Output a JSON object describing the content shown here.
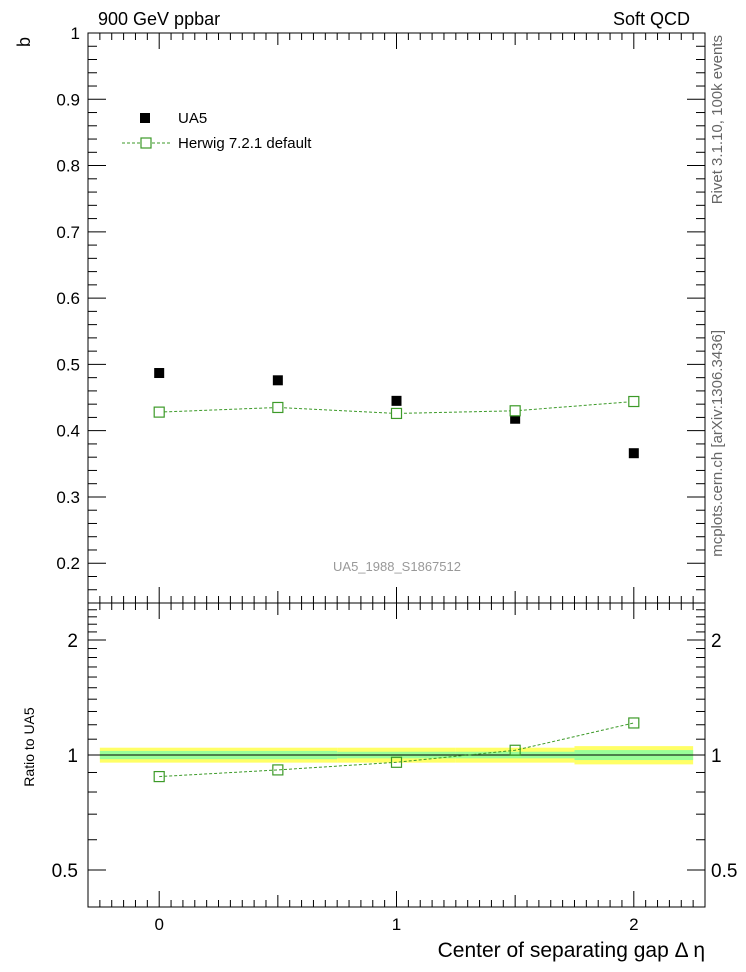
{
  "header": {
    "left": "900 GeV ppbar",
    "right": "Soft QCD"
  },
  "side": {
    "rivet": "Rivet 3.1.10,  100k events",
    "mcplots": "mcplots.cern.ch [arXiv:1306.3436]"
  },
  "analysis_id": "UA5_1988_S1867512",
  "colors": {
    "data": "#000000",
    "mc": "#3c9a28",
    "band_yellow": "#ffff66",
    "band_green": "#99ff99"
  },
  "chart_data": [
    {
      "type": "scatter",
      "panel": "main",
      "ylabel": "b",
      "xlim": [
        -0.3,
        2.3
      ],
      "ylim": [
        0.14,
        1.0
      ],
      "yticks": [
        0.2,
        0.3,
        0.4,
        0.5,
        0.6,
        0.7,
        0.8,
        0.9,
        1
      ],
      "ytick_labels": [
        "0.2",
        "0.3",
        "0.4",
        "0.5",
        "0.6",
        "0.7",
        "0.8",
        "0.9",
        "1"
      ],
      "legend": {
        "placement": "top-left",
        "entries": [
          "UA5",
          "Herwig 7.2.1 default"
        ]
      },
      "series": [
        {
          "name": "UA5",
          "style": "filled-square",
          "x": [
            0,
            0.5,
            1,
            1.5,
            2
          ],
          "values": [
            0.487,
            0.476,
            0.445,
            0.418,
            0.366
          ]
        },
        {
          "name": "Herwig 7.2.1 default",
          "style": "open-square-dashed-line",
          "x": [
            0,
            0.5,
            1,
            1.5,
            2
          ],
          "values": [
            0.428,
            0.435,
            0.426,
            0.43,
            0.444
          ]
        }
      ]
    },
    {
      "type": "line",
      "panel": "ratio",
      "ylabel": "Ratio to UA5",
      "xlabel": "Center of separating gap Δ η",
      "xlim": [
        -0.3,
        2.3
      ],
      "ylim": [
        0.4,
        2.5
      ],
      "log_y": true,
      "xticks": [
        0,
        1,
        2
      ],
      "xtick_labels": [
        "0",
        "1",
        "2"
      ],
      "yticks": [
        0.5,
        1,
        2
      ],
      "ytick_labels": [
        "0.5",
        "1",
        "2"
      ],
      "ratio_series": {
        "name": "Herwig 7.2.1 default",
        "x": [
          0,
          0.5,
          1,
          1.5,
          2
        ],
        "values": [
          0.878,
          0.914,
          0.957,
          1.029,
          1.213
        ]
      },
      "uncertainty_bands": {
        "edges": [
          -0.25,
          0.25,
          0.75,
          1.25,
          1.75,
          2.25
        ],
        "yellow": [
          [
            0.955,
            1.045
          ],
          [
            0.955,
            1.045
          ],
          [
            0.955,
            1.045
          ],
          [
            0.955,
            1.045
          ],
          [
            0.945,
            1.055
          ]
        ],
        "green": [
          [
            0.975,
            1.025
          ],
          [
            0.975,
            1.025
          ],
          [
            0.98,
            1.02
          ],
          [
            0.98,
            1.02
          ],
          [
            0.97,
            1.03
          ]
        ]
      }
    }
  ]
}
